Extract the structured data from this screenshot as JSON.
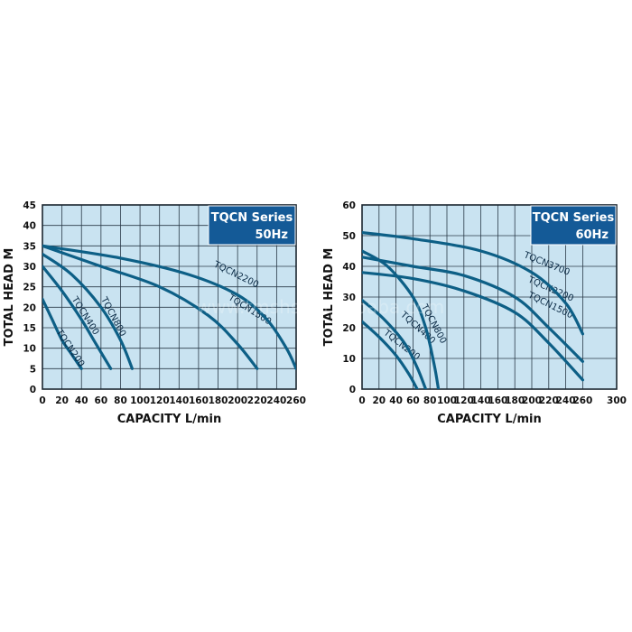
{
  "chart_data": [
    {
      "type": "line",
      "title": "TQCN Series",
      "subtitle": "50Hz",
      "xlabel": "CAPACITY L/min",
      "ylabel": "TOTAL HEAD M",
      "xlim": [
        0,
        260
      ],
      "ylim": [
        0,
        45
      ],
      "xticks": [
        0,
        20,
        40,
        60,
        80,
        100,
        120,
        140,
        160,
        180,
        200,
        220,
        240,
        260
      ],
      "yticks": [
        0,
        5,
        10,
        15,
        20,
        25,
        30,
        35,
        40,
        45
      ],
      "grid": true,
      "background": "#c9e3f1",
      "line_color": "#0d5f86",
      "title_box_color": "#145a97",
      "series": [
        {
          "name": "TQCN200",
          "x": [
            0,
            10,
            20,
            30,
            40
          ],
          "y": [
            22,
            17,
            12,
            8.5,
            5
          ]
        },
        {
          "name": "TQCN400",
          "x": [
            0,
            20,
            40,
            55,
            70
          ],
          "y": [
            30,
            24,
            17,
            11,
            5
          ]
        },
        {
          "name": "TQCN800",
          "x": [
            0,
            30,
            60,
            80,
            92
          ],
          "y": [
            33,
            28,
            20,
            12,
            5
          ]
        },
        {
          "name": "TQCN1500",
          "x": [
            0,
            60,
            120,
            170,
            200,
            220
          ],
          "y": [
            35,
            30,
            25,
            18,
            11,
            5
          ]
        },
        {
          "name": "TQCN2200",
          "x": [
            0,
            80,
            150,
            200,
            230,
            250,
            260
          ],
          "y": [
            35,
            32,
            28,
            23,
            17,
            10,
            5
          ]
        }
      ]
    },
    {
      "type": "line",
      "title": "TQCN Series",
      "subtitle": "60Hz",
      "xlabel": "CAPACITY L/min",
      "ylabel": "TOTAL HEAD M",
      "xlim": [
        0,
        300
      ],
      "ylim": [
        0,
        60
      ],
      "xticks": [
        0,
        20,
        40,
        60,
        80,
        100,
        120,
        140,
        160,
        180,
        200,
        220,
        240,
        260,
        300
      ],
      "yticks": [
        0,
        10,
        20,
        30,
        40,
        50,
        60
      ],
      "grid": true,
      "background": "#c9e3f1",
      "line_color": "#0d5f86",
      "title_box_color": "#145a97",
      "series": [
        {
          "name": "TQCN200",
          "x": [
            0,
            20,
            40,
            55,
            65
          ],
          "y": [
            22,
            17,
            11,
            5,
            0
          ]
        },
        {
          "name": "TQCN400",
          "x": [
            0,
            25,
            50,
            65,
            75
          ],
          "y": [
            29,
            23,
            15,
            7,
            0
          ]
        },
        {
          "name": "TQCN800",
          "x": [
            0,
            30,
            60,
            75,
            85,
            90
          ],
          "y": [
            45,
            40,
            30,
            20,
            8,
            0
          ]
        },
        {
          "name": "TQCN1500",
          "x": [
            0,
            60,
            120,
            180,
            220,
            260
          ],
          "y": [
            38,
            36,
            32,
            25,
            15,
            3
          ]
        },
        {
          "name": "TQCN2200",
          "x": [
            0,
            60,
            120,
            180,
            220,
            260
          ],
          "y": [
            43,
            40,
            37,
            30,
            20,
            9
          ]
        },
        {
          "name": "TQCN3700",
          "x": [
            0,
            60,
            140,
            200,
            240,
            260
          ],
          "y": [
            51,
            49,
            45,
            38,
            28,
            18
          ]
        }
      ]
    }
  ],
  "watermark": "www.tmshs.en.alibaba.com"
}
